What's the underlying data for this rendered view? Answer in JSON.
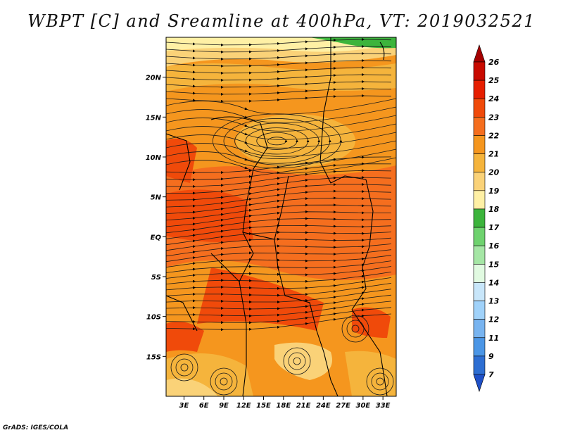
{
  "title": "WBPT [C] and Sreamline at 400hPa, VT: 2019032521",
  "credit": "GrADS: IGES/COLA",
  "axes": {
    "lat_ticks": [
      {
        "label": "20N",
        "value": 20
      },
      {
        "label": "15N",
        "value": 15
      },
      {
        "label": "10N",
        "value": 10
      },
      {
        "label": "5N",
        "value": 5
      },
      {
        "label": "EQ",
        "value": 0
      },
      {
        "label": "5S",
        "value": -5
      },
      {
        "label": "10S",
        "value": -10
      },
      {
        "label": "15S",
        "value": -15
      }
    ],
    "lon_ticks": [
      {
        "label": "3E",
        "value": 3
      },
      {
        "label": "6E",
        "value": 6
      },
      {
        "label": "9E",
        "value": 9
      },
      {
        "label": "12E",
        "value": 12
      },
      {
        "label": "15E",
        "value": 15
      },
      {
        "label": "18E",
        "value": 18
      },
      {
        "label": "21E",
        "value": 21
      },
      {
        "label": "24E",
        "value": 24
      },
      {
        "label": "27E",
        "value": 27
      },
      {
        "label": "30E",
        "value": 30
      },
      {
        "label": "33E",
        "value": 33
      }
    ],
    "lat_range": [
      -20,
      25
    ],
    "lon_range": [
      0.3,
      35
    ]
  },
  "colorbar": {
    "labels": [
      "26",
      "25",
      "24",
      "23",
      "22",
      "21",
      "20",
      "19",
      "18",
      "17",
      "16",
      "15",
      "14",
      "13",
      "12",
      "11",
      "9",
      "7"
    ],
    "colors": [
      "#a50000",
      "#c80a00",
      "#e61e00",
      "#f04a0a",
      "#f56e1e",
      "#f5961e",
      "#f5b43c",
      "#fad278",
      "#fff0a5",
      "#3cb43c",
      "#6ed26e",
      "#a5e6a5",
      "#e1fae1",
      "#c8e6fa",
      "#a0d2fa",
      "#78b4f0",
      "#4b96e6",
      "#2d6ed2",
      "#1e50c8"
    ]
  },
  "map": {
    "field": "WBPT",
    "level": "400hPa",
    "cyclone_center": {
      "lat": 12,
      "lon": 17
    }
  }
}
